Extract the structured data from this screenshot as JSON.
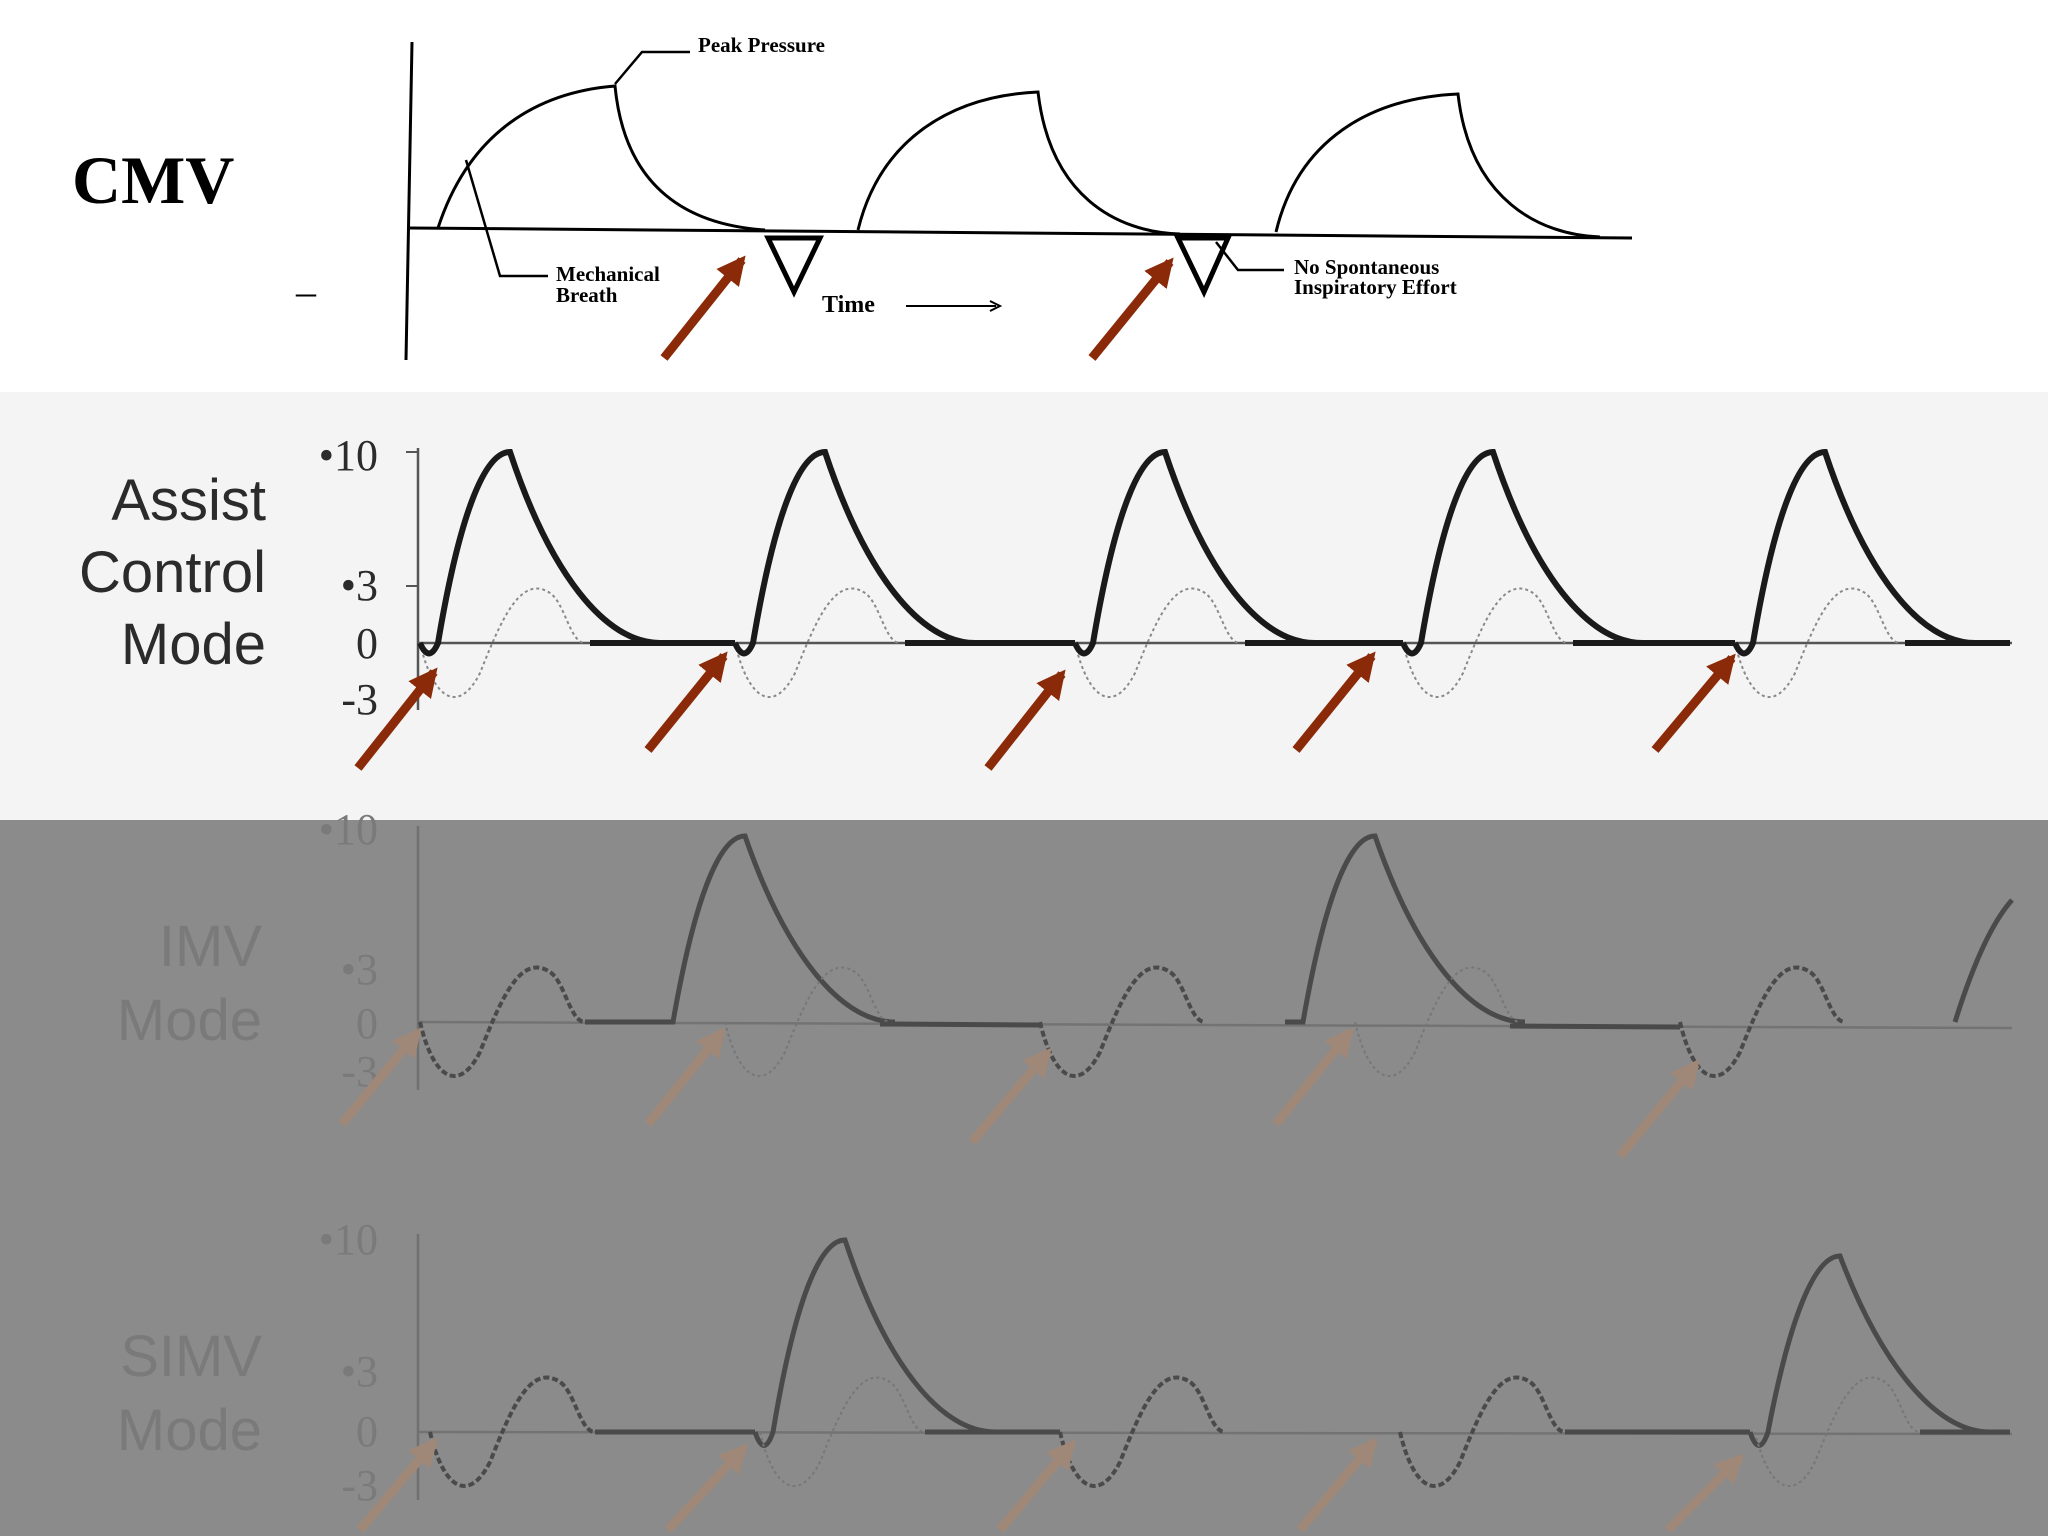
{
  "cmv": {
    "title": "CMV",
    "peak_pressure": "Peak Pressure",
    "mechanical_breath_1": "Mechanical",
    "mechanical_breath_2": "Breath",
    "time_label": "Time",
    "no_spont_1": "No Spontaneous",
    "no_spont_2": "Inspiratory Effort",
    "dash": "–"
  },
  "assist_control": {
    "label_lines": [
      "Assist",
      "Control",
      "Mode"
    ],
    "ticks": [
      "•10",
      "•3",
      "0",
      "-3"
    ]
  },
  "imv": {
    "label_lines": [
      "IMV",
      "Mode"
    ],
    "ticks": [
      "•10",
      "•3",
      "0",
      "-3"
    ]
  },
  "simv": {
    "label_lines": [
      "SIMV",
      "Mode"
    ],
    "ticks": [
      "•10",
      "•3",
      "0",
      "-3"
    ]
  },
  "colors": {
    "arrow": "#8b2a08",
    "arrow_dim": "#a08878",
    "overlay": "#8b8b8b",
    "trace": "#1a1a1a",
    "trace_dim": "#555555"
  }
}
